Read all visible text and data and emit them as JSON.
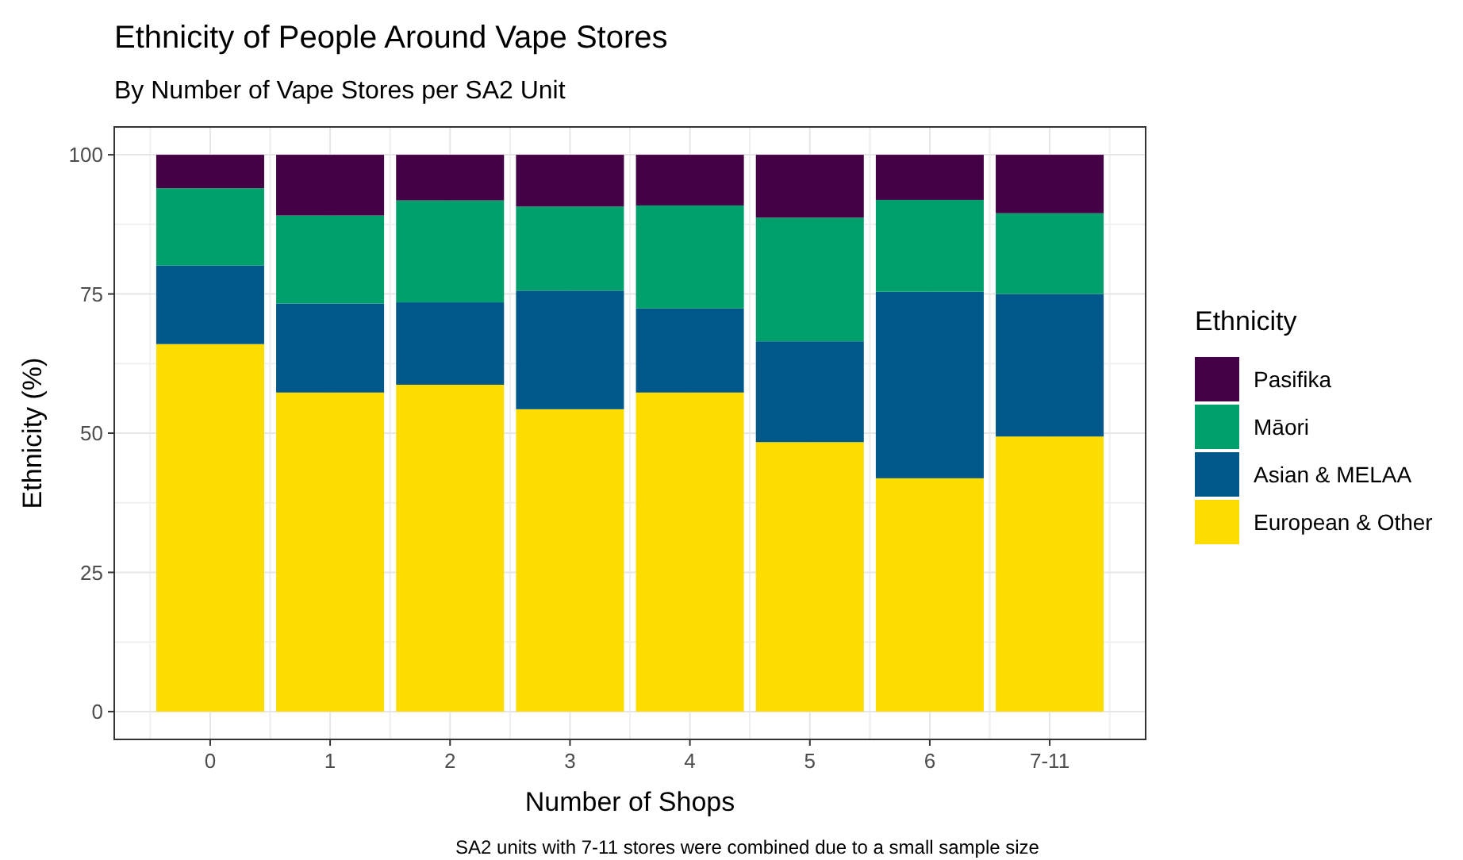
{
  "chart_data": {
    "type": "bar",
    "title": "Ethnicity of People Around Vape Stores",
    "subtitle": "By Number of Vape Stores per SA2 Unit",
    "xlabel": "Number of Shops",
    "ylabel": "Ethnicity (%)",
    "legend_title": "Ethnicity",
    "categories": [
      "0",
      "1",
      "2",
      "3",
      "4",
      "5",
      "6",
      "7-11"
    ],
    "stacked": true,
    "series": [
      {
        "name": "European & Other",
        "color": "#fddc00",
        "values": [
          66.0,
          57.3,
          58.7,
          54.3,
          57.3,
          48.4,
          41.9,
          49.4
        ]
      },
      {
        "name": "Asian & MELAA",
        "color": "#00588a",
        "values": [
          14.1,
          16.0,
          14.8,
          21.3,
          15.1,
          18.1,
          33.5,
          25.6
        ]
      },
      {
        "name": "Māori",
        "color": "#009f6b",
        "values": [
          13.9,
          15.8,
          18.3,
          15.1,
          18.5,
          22.2,
          16.5,
          14.5
        ]
      },
      {
        "name": "Pasifika",
        "color": "#440145",
        "values": [
          6.0,
          10.9,
          8.2,
          9.3,
          9.1,
          11.3,
          8.1,
          10.5
        ]
      }
    ],
    "ylim": [
      -5,
      105
    ],
    "yticks": [
      0,
      25,
      50,
      75,
      100
    ],
    "grid": true,
    "legend": "right",
    "annotations": [
      "SA2 units with 7-11 stores were combined due to a small sample size"
    ]
  }
}
